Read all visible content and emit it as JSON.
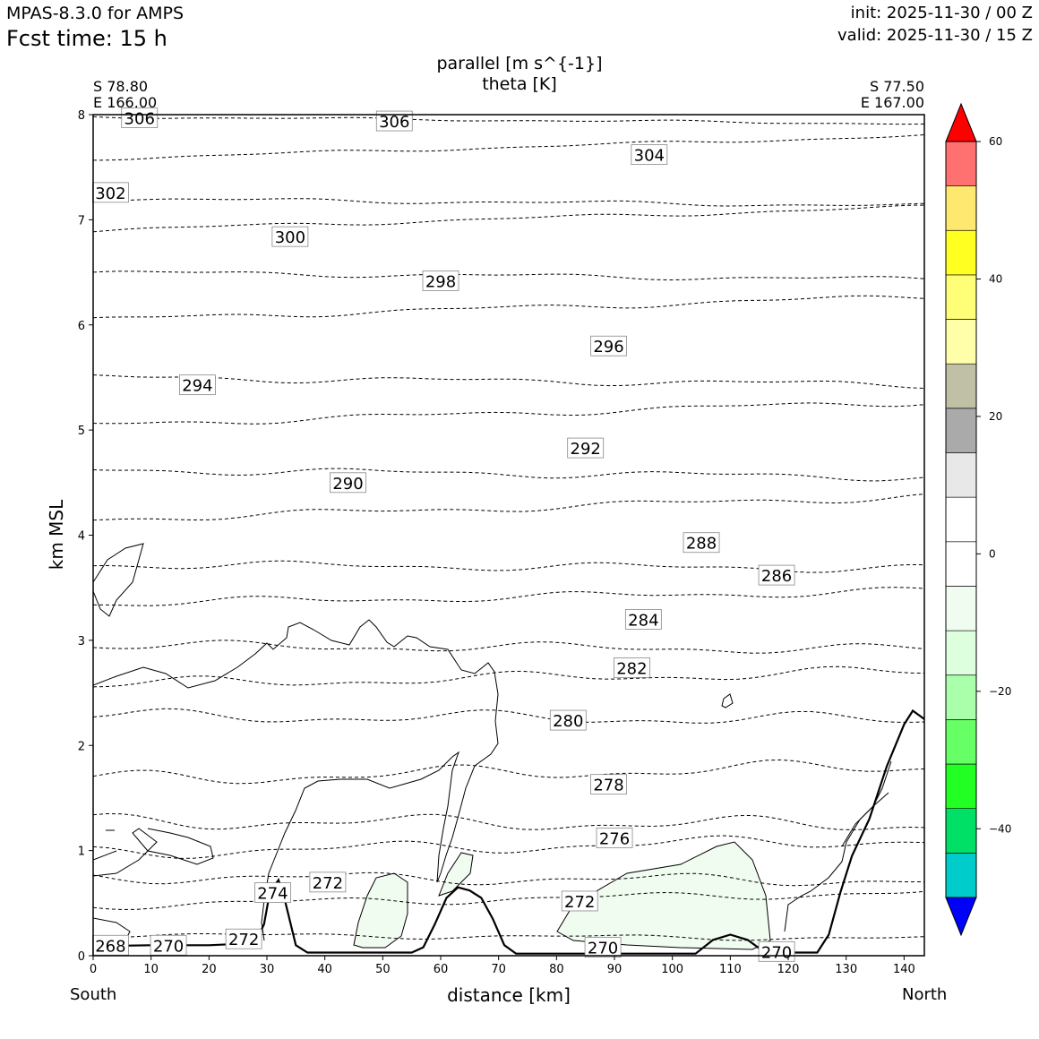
{
  "header": {
    "model": "MPAS-8.3.0 for AMPS",
    "fcst": "Fcst time:   15 h",
    "init": "init: 2025-11-30 / 00 Z",
    "valid": "valid: 2025-11-30 / 15 Z"
  },
  "endpoints": {
    "left_lat": "S 78.80",
    "left_lon": "E 166.00",
    "right_lat": "S 77.50",
    "right_lon": "E 167.00",
    "south": "South",
    "north": "North"
  },
  "colors": {
    "terrain": "#000000",
    "contour": "#000000",
    "fill_light_green": "#f0fcf0"
  },
  "chart_data": {
    "type": "contour",
    "title_fill": "parallel [m s^{-1}]",
    "title_contour": "theta [K]",
    "xlabel": "distance [km]",
    "ylabel": "km MSL",
    "xlim": [
      0,
      143.5
    ],
    "ylim": [
      0,
      8
    ],
    "xticks": [
      0,
      10,
      20,
      30,
      40,
      50,
      60,
      70,
      80,
      90,
      100,
      110,
      120,
      130,
      140
    ],
    "yticks": [
      0,
      1,
      2,
      3,
      4,
      5,
      6,
      7,
      8
    ],
    "theta_levels": [
      {
        "value": 268,
        "label": "268",
        "x": 3,
        "z": 0.1
      },
      {
        "value": 270,
        "label": "270",
        "x": 13,
        "z": 0.1
      },
      {
        "value": 272,
        "label": "272",
        "x": 26,
        "z": 0.16
      },
      {
        "value": 274,
        "label": "274",
        "x": 31,
        "z": 0.6
      },
      {
        "value": 272,
        "label": "272",
        "x": 40.5,
        "z": 0.7
      },
      {
        "value": 272,
        "label": "272",
        "x": 84,
        "z": 0.52
      },
      {
        "value": 270,
        "label": "270",
        "x": 88,
        "z": 0.08
      },
      {
        "value": 270,
        "label": "270",
        "x": 118,
        "z": 0.04
      },
      {
        "value": 276,
        "label": "276",
        "x": 90,
        "z": 1.12
      },
      {
        "value": 278,
        "label": "278",
        "x": 89,
        "z": 1.63
      },
      {
        "value": 280,
        "label": "280",
        "x": 82,
        "z": 2.24
      },
      {
        "value": 282,
        "label": "282",
        "x": 93,
        "z": 2.74
      },
      {
        "value": 284,
        "label": "284",
        "x": 95,
        "z": 3.2
      },
      {
        "value": 286,
        "label": "286",
        "x": 118,
        "z": 3.62
      },
      {
        "value": 288,
        "label": "288",
        "x": 105,
        "z": 3.93
      },
      {
        "value": 290,
        "label": "290",
        "x": 44,
        "z": 4.5
      },
      {
        "value": 292,
        "label": "292",
        "x": 85,
        "z": 4.83
      },
      {
        "value": 294,
        "label": "294",
        "x": 18,
        "z": 5.43
      },
      {
        "value": 296,
        "label": "296",
        "x": 89,
        "z": 5.8
      },
      {
        "value": 298,
        "label": "298",
        "x": 60,
        "z": 6.42
      },
      {
        "value": 300,
        "label": "300",
        "x": 34,
        "z": 6.84
      },
      {
        "value": 302,
        "label": "302",
        "x": 3,
        "z": 7.26
      },
      {
        "value": 304,
        "label": "304",
        "x": 96,
        "z": 7.62
      },
      {
        "value": 306,
        "label": "306",
        "x": 52,
        "z": 7.94
      },
      {
        "value": 306,
        "label": "306",
        "x": 8,
        "z": 7.97
      }
    ],
    "colorbar": {
      "ticks": [
        60,
        40,
        20,
        0,
        -20,
        -40
      ],
      "tick_labels": [
        "60",
        "40",
        "20",
        "0",
        "−20",
        "−40"
      ],
      "levels": [
        -60,
        -55,
        -50,
        -45,
        -40,
        -35,
        -30,
        -25,
        -20,
        -15,
        -10,
        -5,
        0,
        5,
        10,
        15,
        20,
        25,
        30,
        35,
        40,
        45,
        50,
        55,
        60
      ],
      "colors": [
        "#0000ff",
        "#00cccc",
        "#00e066",
        "#22ff22",
        "#66ff66",
        "#aaffaa",
        "#ddffdd",
        "#f0fcf0",
        "#ffffff",
        "#ffffff",
        "#e8e8e8",
        "#aaaaaa",
        "#c0c0a6",
        "#ffffaa",
        "#ffff77",
        "#ffff22",
        "#ffe870",
        "#ff7070",
        "#ff0000"
      ],
      "extend": "both"
    }
  }
}
